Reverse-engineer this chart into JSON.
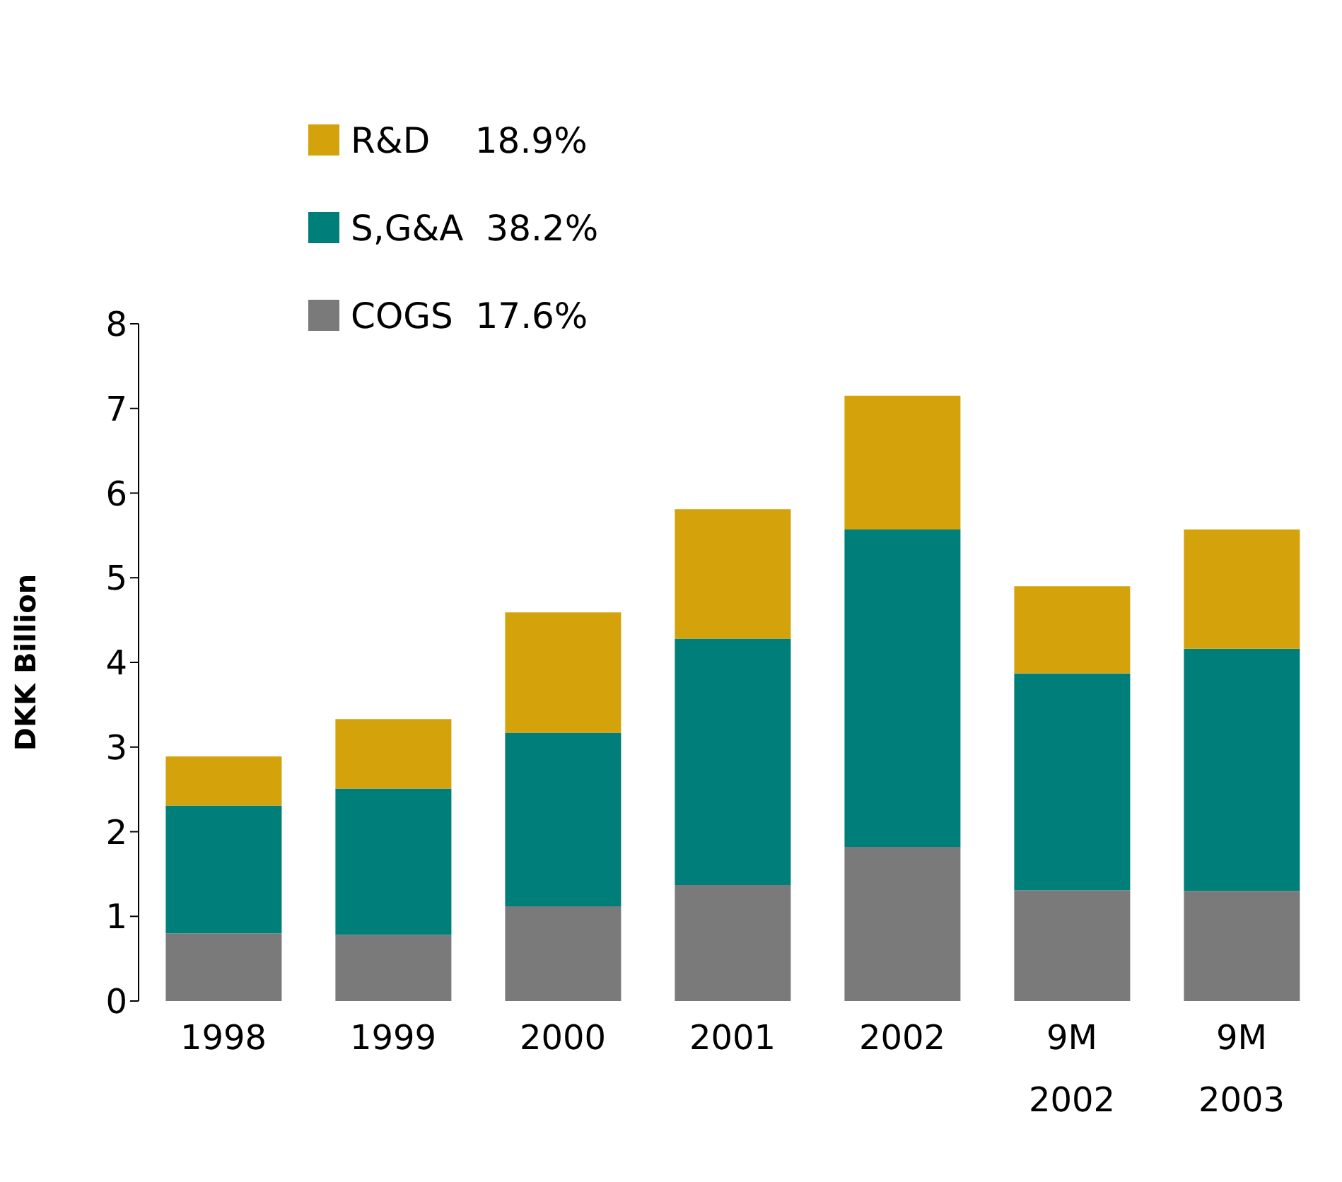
{
  "chart_data": {
    "type": "bar",
    "ylabel": "DKK Billion",
    "categories": [
      "1998",
      "1999",
      "2000",
      "2001",
      "2002",
      "9M\n2002",
      "9M\n2003"
    ],
    "stacked": true,
    "ylim": [
      0,
      8
    ],
    "yticks": [
      0,
      1,
      2,
      3,
      4,
      5,
      6,
      7,
      8
    ],
    "grid": false,
    "legend": "top left",
    "series": [
      {
        "name": "COGS  17.6%",
        "color": "#7a7a7a",
        "values": [
          0.8,
          0.78,
          1.12,
          1.37,
          1.82,
          1.31,
          1.3
        ]
      },
      {
        "name": "S,G&A  38.2%",
        "color": "#007f7a",
        "values": [
          1.51,
          1.73,
          2.05,
          2.91,
          3.75,
          2.56,
          2.86
        ]
      },
      {
        "name": "R&D    18.9%",
        "color": "#d4a20a",
        "values": [
          0.58,
          0.82,
          1.42,
          1.53,
          1.58,
          1.03,
          1.41
        ]
      }
    ]
  }
}
